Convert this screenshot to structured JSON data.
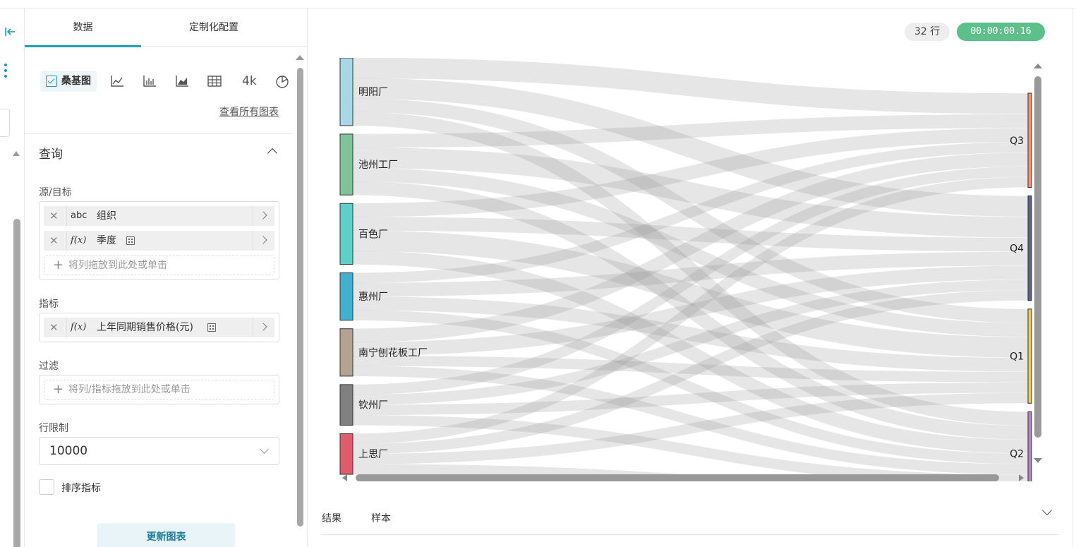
{
  "panel": {
    "tabs": [
      "数据",
      "定制化配置"
    ],
    "chart_types": {
      "selected_label": "桑基图",
      "icons": [
        "line-chart-icon",
        "bar-chart-icon",
        "area-chart-icon",
        "table-icon",
        "big-number-icon",
        "pie-chart-icon"
      ],
      "big_number_label": "4k"
    },
    "view_all_label": "查看所有图表",
    "query": {
      "title": "查询",
      "source_target": {
        "label": "源/目标",
        "items": [
          {
            "type": "abc",
            "name": "组织"
          },
          {
            "type": "f(x)",
            "name": "季度"
          }
        ],
        "hint": "将列拖放到此处或单击"
      },
      "metric": {
        "label": "指标",
        "items": [
          {
            "type": "f(x)",
            "name": "上年同期销售价格(元)"
          }
        ]
      },
      "filter": {
        "label": "过滤",
        "hint": "将列/指标拖放到此处或单击"
      },
      "row_limit": {
        "label": "行限制",
        "value": "10000"
      },
      "sort_metric": {
        "label": "排序指标",
        "checked": false
      }
    },
    "update_button": "更新图表"
  },
  "main": {
    "row_count": "32 行",
    "timer": "00:00:00.16",
    "bottom_tabs": [
      "结果",
      "样本"
    ]
  },
  "chart_data": {
    "type": "sankey",
    "sources": [
      {
        "name": "明阳厂",
        "color": "#a6d8e8"
      },
      {
        "name": "池州工厂",
        "color": "#7ec499"
      },
      {
        "name": "百色厂",
        "color": "#5fcfca"
      },
      {
        "name": "惠州厂",
        "color": "#3fb0cf"
      },
      {
        "name": "南宁刨花板工厂",
        "color": "#b4a391"
      },
      {
        "name": "钦州厂",
        "color": "#808080"
      },
      {
        "name": "上思厂",
        "color": "#e05c6a"
      }
    ],
    "targets": [
      {
        "name": "Q3",
        "color": "#f8946a"
      },
      {
        "name": "Q4",
        "color": "#5b6488"
      },
      {
        "name": "Q1",
        "color": "#f7c948"
      },
      {
        "name": "Q2",
        "color": "#b885c8"
      }
    ],
    "links": [
      {
        "source": "明阳厂",
        "target": "Q3",
        "value": 3
      },
      {
        "source": "明阳厂",
        "target": "Q4",
        "value": 3
      },
      {
        "source": "明阳厂",
        "target": "Q1",
        "value": 2
      },
      {
        "source": "明阳厂",
        "target": "Q2",
        "value": 2
      },
      {
        "source": "池州工厂",
        "target": "Q3",
        "value": 2
      },
      {
        "source": "池州工厂",
        "target": "Q4",
        "value": 3
      },
      {
        "source": "池州工厂",
        "target": "Q1",
        "value": 2
      },
      {
        "source": "池州工厂",
        "target": "Q2",
        "value": 2
      },
      {
        "source": "百色厂",
        "target": "Q3",
        "value": 2
      },
      {
        "source": "百色厂",
        "target": "Q4",
        "value": 2
      },
      {
        "source": "百色厂",
        "target": "Q1",
        "value": 3
      },
      {
        "source": "百色厂",
        "target": "Q2",
        "value": 2
      },
      {
        "source": "惠州厂",
        "target": "Q3",
        "value": 1.5
      },
      {
        "source": "惠州厂",
        "target": "Q4",
        "value": 2
      },
      {
        "source": "惠州厂",
        "target": "Q1",
        "value": 2
      },
      {
        "source": "惠州厂",
        "target": "Q2",
        "value": 1.5
      },
      {
        "source": "南宁刨花板工厂",
        "target": "Q3",
        "value": 2
      },
      {
        "source": "南宁刨花板工厂",
        "target": "Q4",
        "value": 2
      },
      {
        "source": "南宁刨花板工厂",
        "target": "Q1",
        "value": 1.5
      },
      {
        "source": "南宁刨花板工厂",
        "target": "Q2",
        "value": 1.5
      },
      {
        "source": "钦州厂",
        "target": "Q3",
        "value": 1.5
      },
      {
        "source": "钦州厂",
        "target": "Q4",
        "value": 1.5
      },
      {
        "source": "钦州厂",
        "target": "Q1",
        "value": 1.5
      },
      {
        "source": "钦州厂",
        "target": "Q2",
        "value": 1.5
      },
      {
        "source": "上思厂",
        "target": "Q3",
        "value": 1.5
      },
      {
        "source": "上思厂",
        "target": "Q4",
        "value": 1.5
      },
      {
        "source": "上思厂",
        "target": "Q1",
        "value": 1.5
      },
      {
        "source": "上思厂",
        "target": "Q2",
        "value": 1.5
      }
    ]
  }
}
